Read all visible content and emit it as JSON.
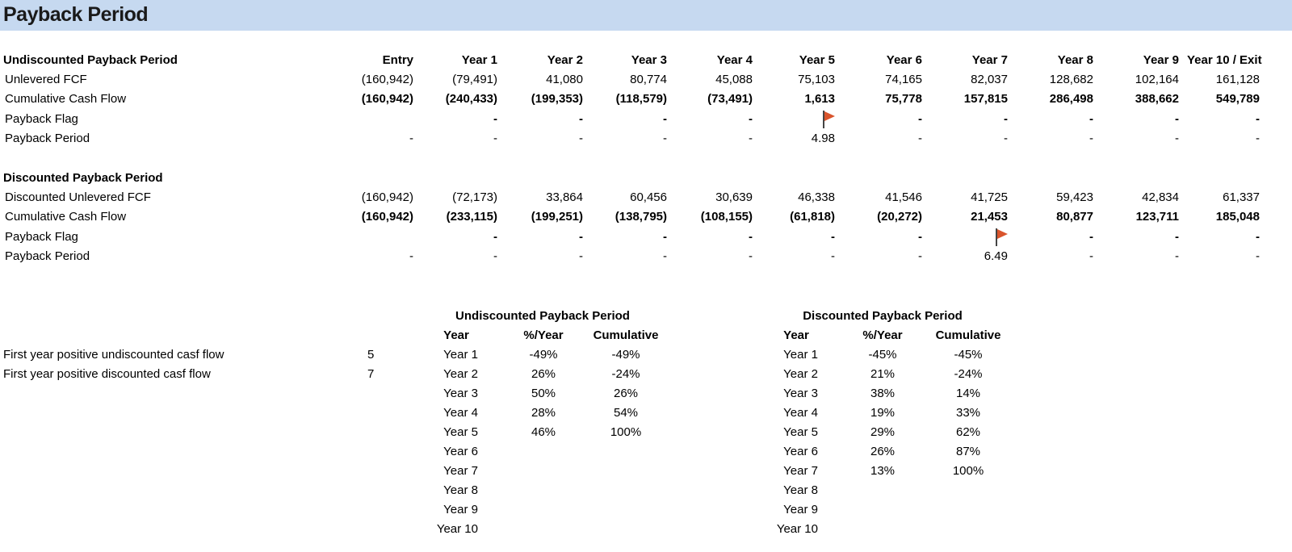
{
  "title": "Payback Period",
  "columns": [
    "Entry",
    "Year 1",
    "Year 2",
    "Year 3",
    "Year 4",
    "Year 5",
    "Year 6",
    "Year 7",
    "Year 8",
    "Year 9",
    "Year 10 / Exit"
  ],
  "undiscounted": {
    "header": "Undiscounted Payback Period",
    "fcf_label": "Unlevered FCF",
    "fcf": [
      "(160,942)",
      "(79,491)",
      "41,080",
      "80,774",
      "45,088",
      "75,103",
      "74,165",
      "82,037",
      "128,682",
      "102,164",
      "161,128"
    ],
    "cum_label": "Cumulative Cash Flow",
    "cum": [
      "(160,942)",
      "(240,433)",
      "(199,353)",
      "(118,579)",
      "(73,491)",
      "1,613",
      "75,778",
      "157,815",
      "286,498",
      "388,662",
      "549,789"
    ],
    "flag_label": "Payback Flag",
    "flags": [
      "",
      "-",
      "-",
      "-",
      "-",
      "",
      "-",
      "-",
      "-",
      "-",
      "-"
    ],
    "flag_icon_index": 5,
    "period_label": "Payback Period",
    "period": [
      "-",
      "-",
      "-",
      "-",
      "-",
      "4.98",
      "-",
      "-",
      "-",
      "-",
      "-"
    ]
  },
  "discounted": {
    "header": "Discounted Payback Period",
    "fcf_label": "Discounted Unlevered FCF",
    "fcf": [
      "(160,942)",
      "(72,173)",
      "33,864",
      "60,456",
      "30,639",
      "46,338",
      "41,546",
      "41,725",
      "59,423",
      "42,834",
      "61,337"
    ],
    "cum_label": "Cumulative Cash Flow",
    "cum": [
      "(160,942)",
      "(233,115)",
      "(199,251)",
      "(138,795)",
      "(108,155)",
      "(61,818)",
      "(20,272)",
      "21,453",
      "80,877",
      "123,711",
      "185,048"
    ],
    "flag_label": "Payback Flag",
    "flags": [
      "",
      "-",
      "-",
      "-",
      "-",
      "-",
      "-",
      "",
      "-",
      "-",
      "-"
    ],
    "flag_icon_index": 7,
    "period_label": "Payback Period",
    "period": [
      "-",
      "-",
      "-",
      "-",
      "-",
      "-",
      "-",
      "6.49",
      "-",
      "-",
      "-"
    ]
  },
  "summary": [
    {
      "label": "First year positive undiscounted casf flow",
      "value": "5"
    },
    {
      "label": "First year positive discounted casf flow",
      "value": "7"
    }
  ],
  "undisc_table": {
    "title": "Undiscounted Payback Period",
    "headers": [
      "Year",
      "%/Year",
      "Cumulative"
    ],
    "rows": [
      [
        "Year 1",
        "-49%",
        "-49%"
      ],
      [
        "Year 2",
        "26%",
        "-24%"
      ],
      [
        "Year 3",
        "50%",
        "26%"
      ],
      [
        "Year 4",
        "28%",
        "54%"
      ],
      [
        "Year 5",
        "46%",
        "100%"
      ],
      [
        "Year 6",
        "",
        ""
      ],
      [
        "Year 7",
        "",
        ""
      ],
      [
        "Year 8",
        "",
        ""
      ],
      [
        "Year 9",
        "",
        ""
      ],
      [
        "Year 10",
        "",
        ""
      ]
    ]
  },
  "disc_table": {
    "title": "Discounted Payback Period",
    "headers": [
      "Year",
      "%/Year",
      "Cumulative"
    ],
    "rows": [
      [
        "Year 1",
        "-45%",
        "-45%"
      ],
      [
        "Year 2",
        "21%",
        "-24%"
      ],
      [
        "Year 3",
        "38%",
        "14%"
      ],
      [
        "Year 4",
        "19%",
        "33%"
      ],
      [
        "Year 5",
        "29%",
        "62%"
      ],
      [
        "Year 6",
        "26%",
        "87%"
      ],
      [
        "Year 7",
        "13%",
        "100%"
      ],
      [
        "Year 8",
        "",
        ""
      ],
      [
        "Year 9",
        "",
        ""
      ],
      [
        "Year 10",
        "",
        ""
      ]
    ]
  },
  "colors": {
    "title_bar": "#c6d9f0",
    "flag": "#d9542c"
  }
}
